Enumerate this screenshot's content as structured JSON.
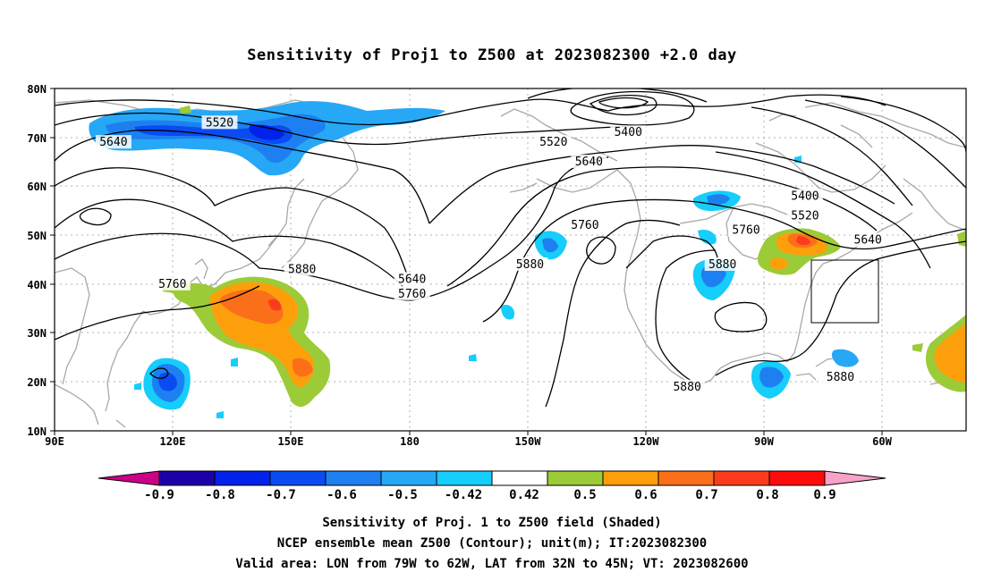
{
  "title": "Sensitivity of Proj1 to Z500 at 2023082300 +2.0 day",
  "lat_ticks": [
    "80N",
    "70N",
    "60N",
    "50N",
    "40N",
    "30N",
    "20N",
    "10N"
  ],
  "lon_ticks": [
    "90E",
    "120E",
    "150E",
    "180",
    "150W",
    "120W",
    "90W",
    "60W"
  ],
  "map_extent": {
    "lon_min": 90,
    "lon_max": 322,
    "lat_min": 10,
    "lat_max": 80
  },
  "contour_labels": [
    {
      "text": "5520",
      "lon": 132,
      "lat": 73
    },
    {
      "text": "5640",
      "lon": 105,
      "lat": 69
    },
    {
      "text": "5520",
      "lon": 217,
      "lat": 69
    },
    {
      "text": "5400",
      "lon": 236,
      "lat": 71
    },
    {
      "text": "5640",
      "lon": 226,
      "lat": 65
    },
    {
      "text": "5400",
      "lon": 281,
      "lat": 58
    },
    {
      "text": "5520",
      "lon": 281,
      "lat": 54
    },
    {
      "text": "5640",
      "lon": 297,
      "lat": 49
    },
    {
      "text": "5760",
      "lon": 225,
      "lat": 52
    },
    {
      "text": "5760",
      "lon": 266,
      "lat": 51
    },
    {
      "text": "5880",
      "lon": 153,
      "lat": 43
    },
    {
      "text": "5880",
      "lon": 211,
      "lat": 44
    },
    {
      "text": "5880",
      "lon": 260,
      "lat": 44
    },
    {
      "text": "5640",
      "lon": 181,
      "lat": 41
    },
    {
      "text": "5760",
      "lon": 181,
      "lat": 38
    },
    {
      "text": "5760",
      "lon": 120,
      "lat": 40
    },
    {
      "text": "5880",
      "lon": 251,
      "lat": 19
    },
    {
      "text": "5880",
      "lon": 290,
      "lat": 21
    }
  ],
  "colorbar": {
    "labels": [
      "-0.9",
      "-0.8",
      "-0.7",
      "-0.6",
      "-0.5",
      "-0.42",
      "0.42",
      "0.5",
      "0.6",
      "0.7",
      "0.8",
      "0.9"
    ],
    "colors": [
      "#1c00a8",
      "#0022ea",
      "#0a4cf2",
      "#1e80f0",
      "#27a8f7",
      "#16cdfb",
      "#ffffff",
      "#9ccb38",
      "#fd9f0b",
      "#fb6f1a",
      "#fa3c1d",
      "#ff0b0b"
    ],
    "low_color": "#cc0088",
    "high_color": "#f7a3c9"
  },
  "valid_box": {
    "lon_min": 281,
    "lon_max": 298,
    "lat_min": 32,
    "lat_max": 45
  },
  "caption": [
    "Sensitivity of Proj. 1 to Z500 field (Shaded)",
    "NCEP ensemble mean Z500 (Contour); unit(m); IT:2023082300",
    "Valid area: LON from 79W to 62W, LAT from 32N to 45N; VT: 2023082600"
  ]
}
